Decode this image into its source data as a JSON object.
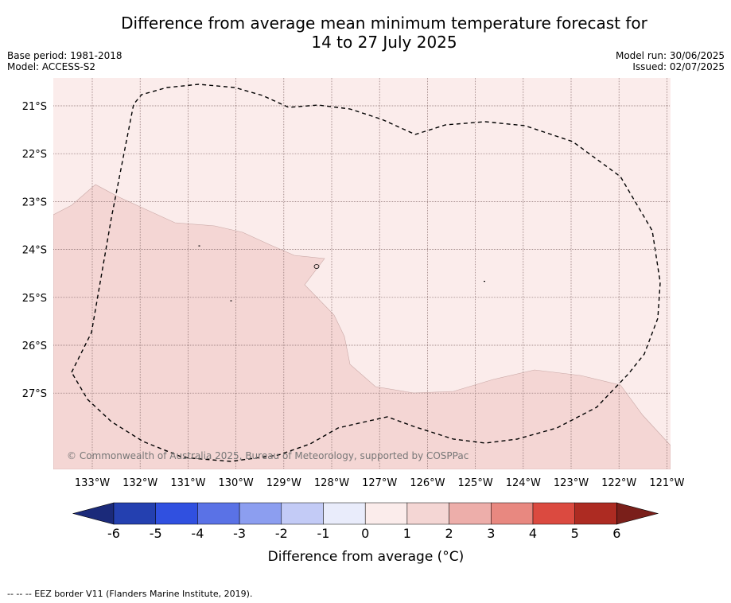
{
  "title_line1": "Difference from average mean minimum temperature forecast for",
  "title_line2": "14 to 27 July 2025",
  "base_period": "Base period: 1981-2018",
  "model": "Model: ACCESS-S2",
  "model_run": "Model run: 30/06/2025",
  "issued": "Issued: 02/07/2025",
  "copyright": "© Commonwealth of Australia 2025, Bureau of Meteorology, supported by COSPPac",
  "map": {
    "lat_labels": [
      "21°S",
      "22°S",
      "23°S",
      "24°S",
      "25°S",
      "26°S",
      "27°S"
    ],
    "lon_labels": [
      "133°W",
      "132°W",
      "131°W",
      "130°W",
      "129°W",
      "128°W",
      "127°W",
      "126°W",
      "125°W",
      "124°W",
      "123°W",
      "122°W",
      "121°W"
    ],
    "fill_colors": {
      "anomaly_0_to_1": "#fbeceb",
      "anomaly_1_to_2": "#f4d6d4"
    },
    "eez_border_style": "dashed"
  },
  "colorbar": {
    "tick_labels": [
      "-6",
      "-5",
      "-4",
      "-3",
      "-2",
      "-1",
      "0",
      "1",
      "2",
      "3",
      "4",
      "5",
      "6"
    ],
    "colors": [
      "#1b2a7a",
      "#2440b0",
      "#3050e0",
      "#5a72e6",
      "#8c9ef0",
      "#c3cbf6",
      "#e9ecfb",
      "#fbeceb",
      "#f4d6d4",
      "#edaeaa",
      "#e88880",
      "#db4a40",
      "#ad2b22",
      "#7a1f1a"
    ],
    "label": "Difference from average (°C)"
  },
  "footnote": "--  --  -- EEZ border V11 (Flanders Marine Institute, 2019)."
}
